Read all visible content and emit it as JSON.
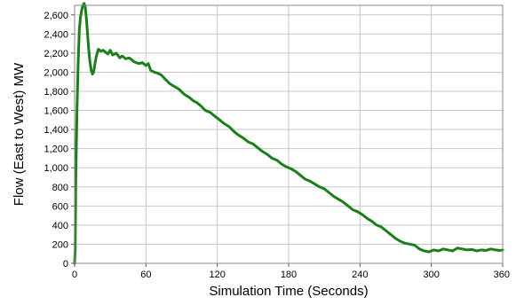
{
  "chart_data": {
    "type": "line",
    "title": "",
    "xlabel": "Simulation Time (Seconds)",
    "ylabel": "Flow (East to West) MW",
    "xlim": [
      0,
      360
    ],
    "ylim": [
      0,
      2700
    ],
    "xticks": [
      0,
      60,
      120,
      180,
      240,
      300,
      360
    ],
    "xtick_labels": [
      "0",
      "60",
      "120",
      "180",
      "240",
      "300",
      "360"
    ],
    "yticks": [
      0,
      200,
      400,
      600,
      800,
      1000,
      1200,
      1400,
      1600,
      1800,
      2000,
      2200,
      2400,
      2600
    ],
    "ytick_labels": [
      "0",
      "200",
      "400",
      "600",
      "800",
      "1,000",
      "1,200",
      "1,400",
      "1,600",
      "1,800",
      "2,000",
      "2,200",
      "2,400",
      "2,600"
    ],
    "grid": true,
    "legend": "none",
    "series": [
      {
        "color": "#1a7f1a",
        "x": [
          0,
          0.5,
          1,
          2,
          3,
          4,
          5,
          6,
          7,
          8,
          9,
          10,
          11,
          12,
          13,
          14,
          15,
          16,
          17,
          18,
          19,
          20,
          22,
          24,
          26,
          28,
          30,
          32,
          35,
          38,
          40,
          43,
          46,
          50,
          54,
          57,
          60,
          62,
          64,
          67,
          70,
          73,
          76,
          80,
          84,
          88,
          92,
          96,
          100,
          103,
          106,
          110,
          114,
          118,
          122,
          126,
          130,
          134,
          138,
          142,
          146,
          150,
          154,
          158,
          162,
          166,
          170,
          174,
          178,
          182,
          186,
          190,
          194,
          198,
          202,
          206,
          210,
          214,
          218,
          222,
          226,
          230,
          234,
          238,
          242,
          246,
          250,
          254,
          258,
          262,
          266,
          270,
          274,
          278,
          282,
          286,
          290,
          294,
          298,
          302,
          306,
          310,
          314,
          318,
          322,
          326,
          330,
          334,
          338,
          342,
          346,
          350,
          354,
          358,
          360
        ],
        "y": [
          0,
          150,
          900,
          1600,
          2100,
          2450,
          2580,
          2650,
          2700,
          2720,
          2680,
          2550,
          2380,
          2220,
          2100,
          2020,
          1980,
          2000,
          2080,
          2150,
          2200,
          2240,
          2220,
          2230,
          2210,
          2190,
          2230,
          2180,
          2200,
          2150,
          2170,
          2140,
          2150,
          2110,
          2090,
          2100,
          2070,
          2090,
          2020,
          2000,
          1990,
          1970,
          1930,
          1880,
          1850,
          1820,
          1770,
          1740,
          1700,
          1680,
          1650,
          1600,
          1580,
          1540,
          1500,
          1460,
          1430,
          1380,
          1340,
          1310,
          1270,
          1250,
          1210,
          1170,
          1140,
          1100,
          1080,
          1040,
          1010,
          990,
          960,
          920,
          880,
          860,
          830,
          800,
          780,
          740,
          700,
          670,
          640,
          600,
          560,
          540,
          510,
          470,
          440,
          400,
          380,
          340,
          300,
          260,
          230,
          210,
          200,
          190,
          150,
          130,
          120,
          140,
          130,
          150,
          140,
          130,
          160,
          150,
          140,
          145,
          130,
          140,
          135,
          150,
          140,
          135,
          140
        ]
      }
    ]
  }
}
